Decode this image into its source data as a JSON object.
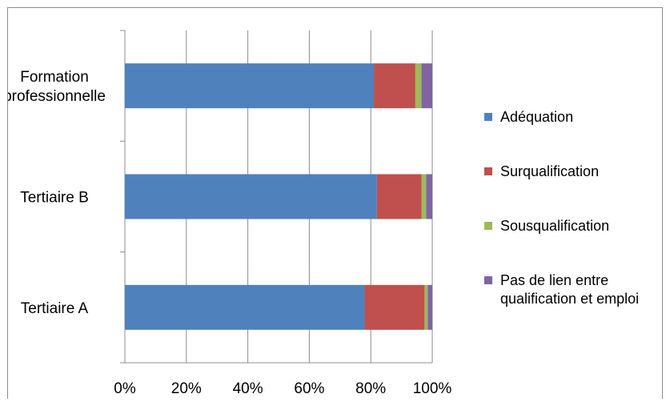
{
  "chart_data": {
    "type": "bar",
    "orientation": "horizontal",
    "stacked": "percent",
    "categories": [
      "Tertiaire A",
      "Tertiaire B",
      "Formation professionnelle"
    ],
    "category_label_lines": [
      [
        "Tertiaire A"
      ],
      [
        "Tertiaire B"
      ],
      [
        "Formation",
        "professionnelle"
      ]
    ],
    "series": [
      {
        "name": "Adéquation",
        "color": "#4f81bd",
        "values": [
          78,
          82,
          81
        ]
      },
      {
        "name": "Surqualification",
        "color": "#c0504d",
        "values": [
          19.5,
          14.5,
          13.5
        ]
      },
      {
        "name": "Sousqualification",
        "color": "#9bbb59",
        "values": [
          1,
          1.5,
          2
        ]
      },
      {
        "name": "Pas de lien entre qualification et emploi",
        "color": "#8064a2",
        "values": [
          1.5,
          2,
          3.5
        ]
      }
    ],
    "legend_label_lines": [
      [
        "Adéquation"
      ],
      [
        "Surqualification"
      ],
      [
        "Sousqualification"
      ],
      [
        "Pas de lien entre",
        "qualification et emploi"
      ]
    ],
    "xlim": [
      0,
      100
    ],
    "x_ticks": [
      "0%",
      "20%",
      "40%",
      "60%",
      "80%",
      "100%"
    ],
    "grid": "vertical",
    "legend_position": "right"
  }
}
